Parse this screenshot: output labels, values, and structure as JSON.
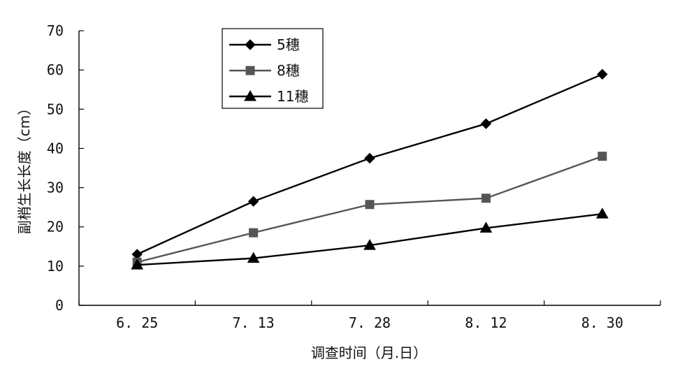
{
  "chart_data": {
    "type": "line",
    "title": "",
    "xlabel": "调查时间（月.日）",
    "ylabel": "副梢生长长度（cm）",
    "categories": [
      "6.25",
      "7.13",
      "7.28",
      "8.12",
      "8.30"
    ],
    "category_labels": [
      "6. 25",
      "7. 13",
      "7. 28",
      "8. 12",
      "8. 30"
    ],
    "ylim": [
      0,
      70
    ],
    "yticks": [
      0,
      10,
      20,
      30,
      40,
      50,
      60,
      70
    ],
    "grid": false,
    "legend_position": "top-left",
    "series": [
      {
        "name": "5穗",
        "values": [
          13,
          26.5,
          37.5,
          46.3,
          58.9
        ],
        "color": "#000000",
        "marker": "diamond"
      },
      {
        "name": "8穗",
        "values": [
          11,
          18.5,
          25.7,
          27.3,
          38.0
        ],
        "color": "#555555",
        "marker": "square"
      },
      {
        "name": "11穗",
        "values": [
          10.3,
          12,
          15.3,
          19.7,
          23.3
        ],
        "color": "#000000",
        "marker": "triangle"
      }
    ]
  }
}
